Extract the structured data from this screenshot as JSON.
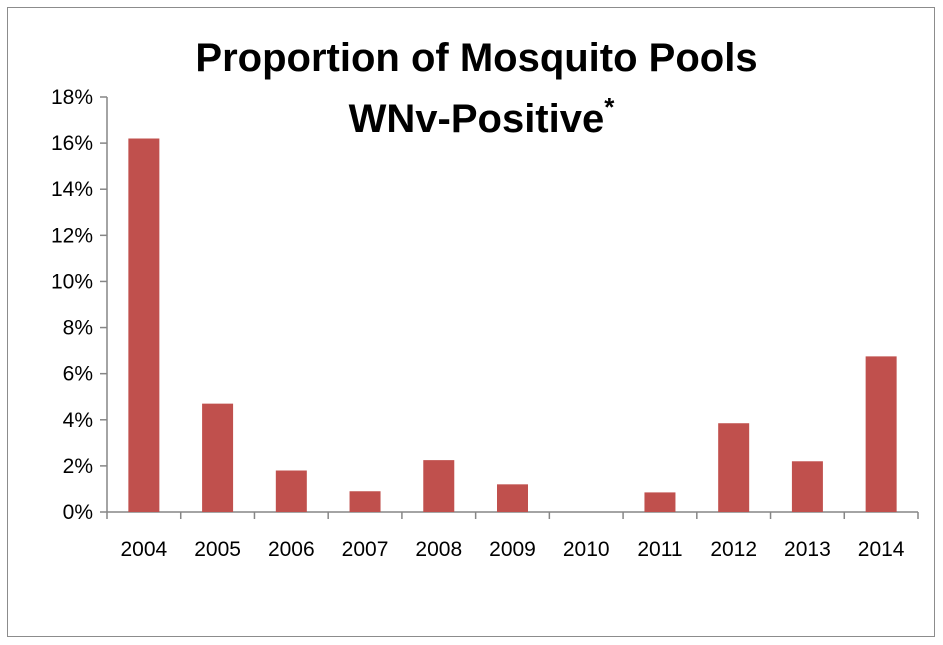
{
  "chart_data": {
    "type": "bar",
    "title_line1": "Proportion of Mosquito Pools",
    "title_line2": "WNv-Positive",
    "title_mark": "*",
    "categories": [
      "2004",
      "2005",
      "2006",
      "2007",
      "2008",
      "2009",
      "2010",
      "2011",
      "2012",
      "2013",
      "2014"
    ],
    "values": [
      16.2,
      4.7,
      1.8,
      0.9,
      2.25,
      1.2,
      0.0,
      0.85,
      3.85,
      2.2,
      6.75
    ],
    "ylim": [
      0,
      18
    ],
    "yticks": [
      "0%",
      "2%",
      "4%",
      "6%",
      "8%",
      "10%",
      "12%",
      "14%",
      "16%",
      "18%"
    ],
    "grid": false,
    "legend": "none"
  },
  "colors": {
    "bar": "#c0504d",
    "axis": "#868686"
  }
}
